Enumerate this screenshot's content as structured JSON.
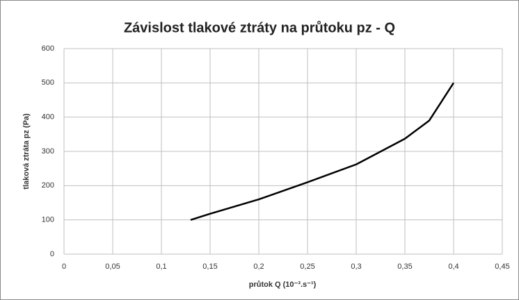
{
  "chart_data": {
    "type": "line",
    "title": "Závislost tlakové ztráty na průtoku pz - Q",
    "xlabel": "průtok Q (10⁻³.s⁻¹)",
    "ylabel": "tlaková ztráta pz (Pa)",
    "x": [
      0.13,
      0.15,
      0.2,
      0.25,
      0.3,
      0.35,
      0.375,
      0.4
    ],
    "values": [
      100,
      118,
      160,
      210,
      262,
      337,
      390,
      500
    ],
    "color": "#000000",
    "xlim": [
      0,
      0.45
    ],
    "xticks": [
      0,
      {
        "value": 0.05,
        "label": "0,05"
      },
      {
        "value": 0.1,
        "label": "0,1"
      },
      {
        "value": 0.15,
        "label": "0,15"
      },
      {
        "value": 0.2,
        "label": "0,2"
      },
      {
        "value": 0.25,
        "label": "0,25"
      },
      {
        "value": 0.3,
        "label": "0,3"
      },
      {
        "value": 0.35,
        "label": "0,35"
      },
      {
        "value": 0.4,
        "label": "0,4"
      },
      {
        "value": 0.45,
        "label": "0,45"
      }
    ],
    "ylim": [
      0,
      600
    ],
    "yticks": [
      0,
      100,
      200,
      300,
      400,
      500,
      600
    ],
    "grid": true
  }
}
